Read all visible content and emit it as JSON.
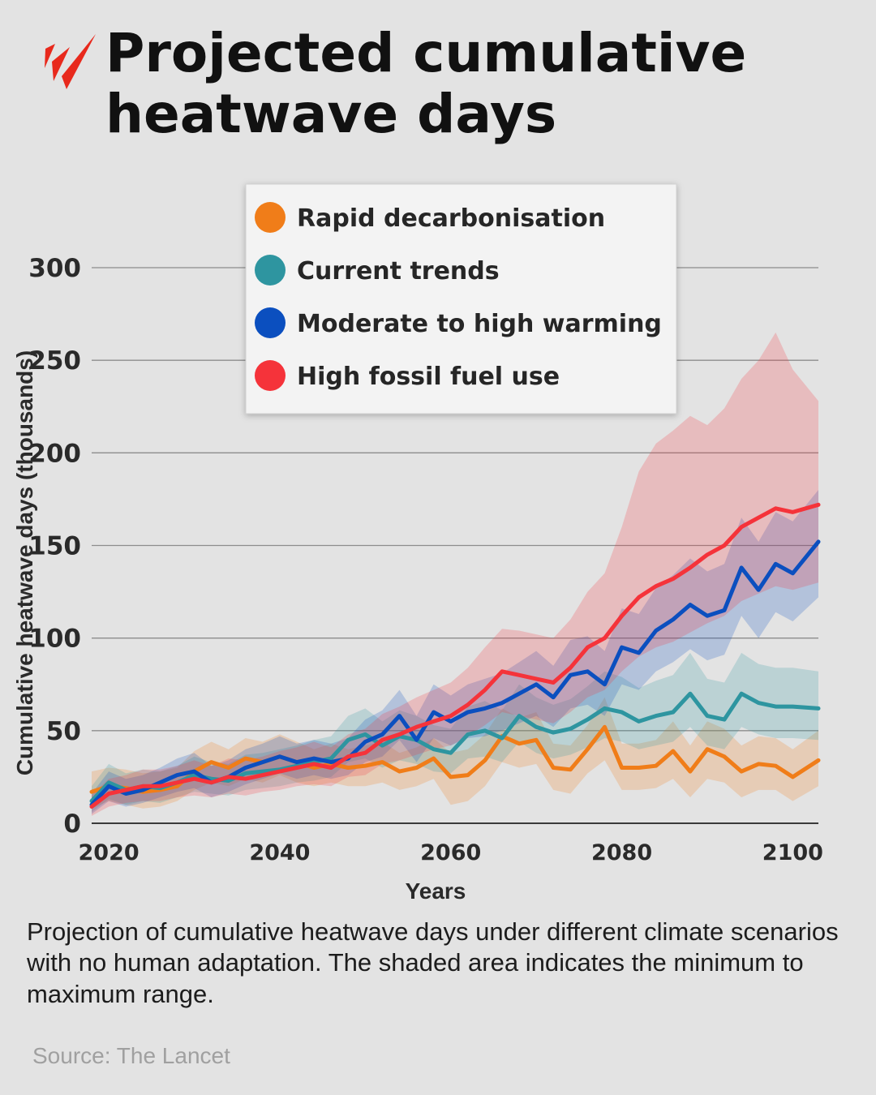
{
  "header": {
    "title": "Projected cumulative heatwave days",
    "logo_icon": "sbs-news-logo-icon",
    "logo_color": "#e8291c"
  },
  "caption": "Projection of cumulative heatwave days under different climate scenarios with no human adaptation. The shaded area indicates the minimum to maximum range.",
  "source": "Source: The Lancet",
  "chart_data": {
    "type": "line",
    "title": "Projected cumulative heatwave days",
    "xlabel": "Years",
    "ylabel": "Cumulative heatwave days (thousands)",
    "xlim": [
      2018,
      2103
    ],
    "ylim": [
      0,
      300
    ],
    "xticks": [
      2020,
      2040,
      2060,
      2080,
      2100
    ],
    "yticks": [
      0,
      50,
      100,
      150,
      200,
      250,
      300
    ],
    "grid": "horizontal",
    "legend_position": "top-center",
    "series": [
      {
        "name": "Rapid decarbonisation",
        "color": "#f07d19",
        "x": [
          2018,
          2020,
          2022,
          2024,
          2026,
          2028,
          2030,
          2032,
          2034,
          2036,
          2038,
          2040,
          2042,
          2044,
          2046,
          2048,
          2050,
          2052,
          2054,
          2056,
          2058,
          2060,
          2062,
          2064,
          2066,
          2068,
          2070,
          2072,
          2074,
          2076,
          2078,
          2080,
          2082,
          2084,
          2086,
          2088,
          2090,
          2092,
          2094,
          2096,
          2098,
          2100,
          2103
        ],
        "values": [
          17,
          20,
          19,
          17,
          18,
          20,
          28,
          33,
          30,
          35,
          33,
          36,
          33,
          30,
          32,
          30,
          31,
          33,
          28,
          30,
          35,
          25,
          26,
          34,
          47,
          43,
          45,
          30,
          29,
          40,
          52,
          30,
          30,
          31,
          39,
          28,
          40,
          36,
          28,
          32,
          31,
          25,
          34
        ],
        "min": [
          8,
          12,
          10,
          8,
          9,
          12,
          18,
          22,
          20,
          24,
          22,
          26,
          22,
          20,
          22,
          20,
          20,
          22,
          18,
          20,
          24,
          10,
          12,
          20,
          33,
          30,
          32,
          18,
          16,
          27,
          34,
          18,
          18,
          19,
          24,
          14,
          24,
          22,
          14,
          18,
          18,
          12,
          20
        ],
        "max": [
          28,
          30,
          29,
          27,
          28,
          30,
          39,
          44,
          40,
          46,
          44,
          48,
          44,
          40,
          43,
          40,
          42,
          44,
          38,
          41,
          46,
          38,
          40,
          48,
          62,
          57,
          60,
          43,
          42,
          53,
          68,
          43,
          43,
          45,
          55,
          42,
          55,
          51,
          42,
          47,
          46,
          40,
          50
        ]
      },
      {
        "name": "Current trends",
        "color": "#2e95a0",
        "x": [
          2018,
          2020,
          2022,
          2024,
          2026,
          2028,
          2030,
          2032,
          2034,
          2036,
          2038,
          2040,
          2042,
          2044,
          2046,
          2048,
          2050,
          2052,
          2054,
          2056,
          2058,
          2060,
          2062,
          2064,
          2066,
          2068,
          2070,
          2072,
          2074,
          2076,
          2078,
          2080,
          2082,
          2084,
          2086,
          2088,
          2090,
          2092,
          2094,
          2096,
          2098,
          2100,
          2103
        ],
        "values": [
          12,
          22,
          18,
          20,
          19,
          22,
          26,
          24,
          23,
          27,
          28,
          29,
          31,
          33,
          35,
          45,
          48,
          42,
          47,
          45,
          40,
          38,
          48,
          50,
          46,
          58,
          52,
          49,
          51,
          56,
          62,
          60,
          55,
          58,
          60,
          70,
          58,
          56,
          70,
          65,
          63,
          63,
          62
        ],
        "min": [
          6,
          13,
          10,
          12,
          11,
          14,
          17,
          16,
          15,
          18,
          19,
          20,
          22,
          23,
          25,
          33,
          35,
          30,
          34,
          32,
          28,
          27,
          35,
          36,
          33,
          44,
          38,
          35,
          37,
          41,
          46,
          44,
          40,
          42,
          44,
          52,
          42,
          40,
          52,
          48,
          46,
          46,
          45
        ],
        "max": [
          20,
          32,
          27,
          29,
          28,
          31,
          36,
          33,
          32,
          37,
          38,
          40,
          42,
          45,
          47,
          58,
          62,
          55,
          61,
          58,
          53,
          51,
          63,
          66,
          61,
          75,
          68,
          64,
          67,
          74,
          82,
          79,
          73,
          77,
          80,
          92,
          78,
          76,
          92,
          86,
          84,
          84,
          82
        ]
      },
      {
        "name": "Moderate to high warming",
        "color": "#0b4fbf",
        "x": [
          2018,
          2020,
          2022,
          2024,
          2026,
          2028,
          2030,
          2032,
          2034,
          2036,
          2038,
          2040,
          2042,
          2044,
          2046,
          2048,
          2050,
          2052,
          2054,
          2056,
          2058,
          2060,
          2062,
          2064,
          2066,
          2068,
          2070,
          2072,
          2074,
          2076,
          2078,
          2080,
          2082,
          2084,
          2086,
          2088,
          2090,
          2092,
          2094,
          2096,
          2098,
          2100,
          2103
        ],
        "values": [
          10,
          20,
          16,
          18,
          22,
          26,
          28,
          22,
          25,
          30,
          33,
          36,
          33,
          35,
          33,
          35,
          44,
          48,
          58,
          45,
          60,
          55,
          60,
          62,
          65,
          70,
          75,
          68,
          80,
          82,
          75,
          95,
          92,
          104,
          110,
          118,
          112,
          115,
          138,
          126,
          140,
          135,
          152
        ],
        "min": [
          5,
          12,
          9,
          11,
          14,
          17,
          19,
          14,
          17,
          21,
          24,
          27,
          24,
          26,
          24,
          26,
          33,
          36,
          45,
          33,
          46,
          42,
          46,
          47,
          50,
          54,
          58,
          52,
          62,
          64,
          58,
          75,
          72,
          82,
          87,
          94,
          88,
          91,
          112,
          100,
          114,
          109,
          122
        ],
        "max": [
          16,
          28,
          24,
          26,
          30,
          35,
          38,
          31,
          34,
          40,
          43,
          47,
          43,
          45,
          43,
          46,
          56,
          61,
          72,
          58,
          75,
          69,
          75,
          78,
          81,
          87,
          93,
          85,
          99,
          101,
          93,
          116,
          113,
          127,
          134,
          143,
          136,
          140,
          165,
          152,
          168,
          163,
          180
        ]
      },
      {
        "name": "High fossil fuel use",
        "color": "#f5333a",
        "x": [
          2018,
          2020,
          2022,
          2024,
          2026,
          2028,
          2030,
          2032,
          2034,
          2036,
          2038,
          2040,
          2042,
          2044,
          2046,
          2048,
          2050,
          2052,
          2054,
          2056,
          2058,
          2060,
          2062,
          2064,
          2066,
          2068,
          2070,
          2072,
          2074,
          2076,
          2078,
          2080,
          2082,
          2084,
          2086,
          2088,
          2090,
          2092,
          2094,
          2096,
          2098,
          2100,
          2103
        ],
        "values": [
          9,
          16,
          18,
          20,
          20,
          22,
          24,
          22,
          25,
          24,
          26,
          28,
          30,
          32,
          30,
          36,
          38,
          45,
          48,
          52,
          55,
          58,
          64,
          72,
          82,
          80,
          78,
          76,
          84,
          95,
          100,
          112,
          122,
          128,
          132,
          138,
          145,
          150,
          160,
          165,
          170,
          168,
          172
        ],
        "min": [
          4,
          9,
          11,
          12,
          12,
          14,
          15,
          14,
          16,
          15,
          17,
          18,
          20,
          21,
          20,
          25,
          26,
          32,
          34,
          37,
          40,
          42,
          47,
          53,
          60,
          58,
          56,
          54,
          60,
          68,
          72,
          82,
          90,
          95,
          98,
          103,
          108,
          112,
          120,
          124,
          128,
          126,
          130
        ],
        "max": [
          15,
          24,
          26,
          29,
          29,
          31,
          34,
          31,
          35,
          34,
          36,
          39,
          41,
          44,
          41,
          48,
          51,
          59,
          63,
          68,
          72,
          76,
          84,
          95,
          105,
          104,
          102,
          100,
          110,
          125,
          135,
          160,
          190,
          205,
          212,
          220,
          215,
          224,
          240,
          250,
          265,
          245,
          228
        ]
      }
    ]
  }
}
